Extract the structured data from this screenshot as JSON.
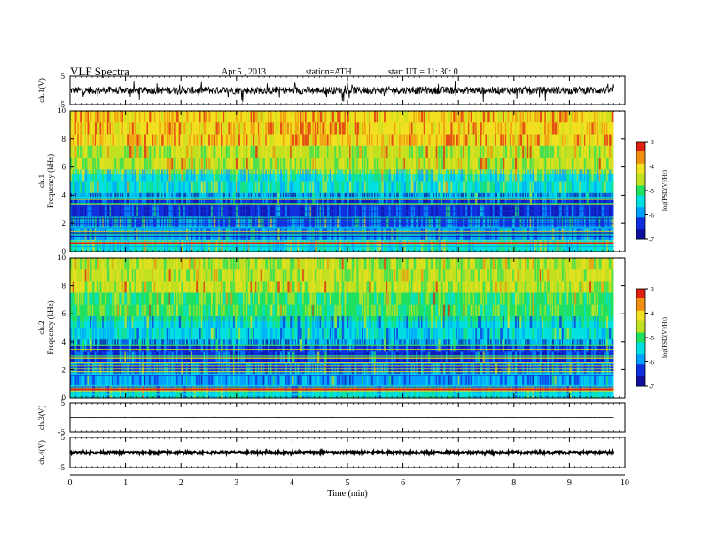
{
  "header": {
    "title": "VLF  Spectra",
    "date": "Apr.5  , 2013",
    "station": "station=ATH",
    "start": "start  UT  =    11: 30: 0"
  },
  "colors": {
    "line": "#000000",
    "colormap": [
      "#000000",
      "#1010a0",
      "#1030e0",
      "#00a0ff",
      "#00e0e0",
      "#20e060",
      "#c0e020",
      "#f0e020",
      "#f09010",
      "#e02010",
      "#ffffff"
    ]
  },
  "chart_data": [
    {
      "type": "line",
      "panel": "ch1-waveform",
      "ylabel": "ch.1(V)",
      "ylim": [
        -5,
        5
      ],
      "yticks": [
        5,
        -5
      ],
      "description_series": {
        "baseline_level": 0.0,
        "noise_band": [
          -1.3,
          1.3
        ],
        "spike_range": [
          -4.2,
          3.2
        ]
      }
    },
    {
      "type": "heatmap",
      "panel": "ch1-spectrogram",
      "ylabel_channel": "ch.1",
      "ylabel": "Frequency  (kHz)",
      "ylim": [
        0,
        10
      ],
      "yticks": [
        0,
        2,
        4,
        6,
        8,
        10
      ],
      "colorbar": {
        "label": "log(PSD(V²/Hz)",
        "range": [
          -7,
          -3
        ],
        "ticks": [
          -3,
          -4,
          -5,
          -6,
          -7
        ]
      },
      "bands_khz": [
        {
          "range": [
            0.0,
            0.5
          ],
          "log_psd": -5.3
        },
        {
          "range": [
            0.5,
            0.8
          ],
          "log_psd": -4.0
        },
        {
          "range": [
            0.8,
            1.8
          ],
          "log_psd": -5.8
        },
        {
          "range": [
            1.8,
            3.8
          ],
          "log_psd": -6.4
        },
        {
          "range": [
            3.8,
            5.5
          ],
          "log_psd": -5.3
        },
        {
          "range": [
            5.5,
            7.5
          ],
          "log_psd": -4.5
        },
        {
          "range": [
            7.5,
            10.0
          ],
          "log_psd": -3.9
        }
      ]
    },
    {
      "type": "heatmap",
      "panel": "ch2-spectrogram",
      "ylabel_channel": "ch.2",
      "ylabel": "Frequency  (kHz)",
      "ylim": [
        0,
        10
      ],
      "yticks": [
        0,
        2,
        4,
        6,
        8,
        10
      ],
      "colorbar": {
        "label": "log(PSD(V²/Hz)",
        "range": [
          -7,
          -3
        ],
        "ticks": [
          -3,
          -4,
          -5,
          -6,
          -7
        ]
      },
      "bands_khz": [
        {
          "range": [
            0.0,
            0.5
          ],
          "log_psd": -5.5
        },
        {
          "range": [
            0.5,
            0.8
          ],
          "log_psd": -4.2
        },
        {
          "range": [
            0.8,
            1.8
          ],
          "log_psd": -6.0
        },
        {
          "range": [
            1.8,
            3.8
          ],
          "log_psd": -6.3
        },
        {
          "range": [
            3.8,
            5.5
          ],
          "log_psd": -5.6
        },
        {
          "range": [
            5.5,
            7.5
          ],
          "log_psd": -4.9
        },
        {
          "range": [
            7.5,
            10.0
          ],
          "log_psd": -4.5
        }
      ]
    },
    {
      "type": "line",
      "panel": "ch3-waveform",
      "ylabel": "ch.3(V)",
      "ylim": [
        -5,
        5
      ],
      "yticks": [
        5,
        -5
      ],
      "description_series": {
        "baseline_level": 0.0,
        "noise_band": [
          -0.05,
          0.05
        ]
      }
    },
    {
      "type": "line",
      "panel": "ch4-waveform",
      "ylabel": "ch.4(V)",
      "ylim": [
        -5,
        5
      ],
      "yticks": [
        5,
        -5
      ],
      "description_series": {
        "baseline_level": 0.0,
        "noise_band": [
          -0.4,
          0.4
        ]
      }
    }
  ],
  "x_axis": {
    "label": "Time  (min)",
    "xlim": [
      0,
      10
    ],
    "ticks": [
      0,
      1,
      2,
      3,
      4,
      5,
      6,
      7,
      8,
      9,
      10
    ],
    "data_end": 9.8
  }
}
